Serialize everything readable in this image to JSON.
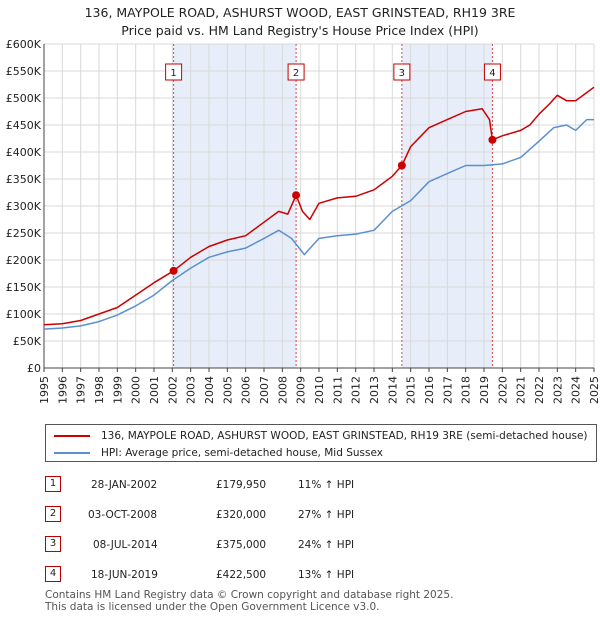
{
  "title_line1": "136, MAYPOLE ROAD, ASHURST WOOD, EAST GRINSTEAD, RH19 3RE",
  "title_line2": "Price paid vs. HM Land Registry's House Price Index (HPI)",
  "colors": {
    "property": "#cc0000",
    "hpi": "#5b8fd0",
    "shade": "#e8eef9",
    "marker_border": "#c00000"
  },
  "legend": {
    "property_label": "136, MAYPOLE ROAD, ASHURST WOOD, EAST GRINSTEAD, RH19 3RE (semi-detached house)",
    "hpi_label": "HPI: Average price, semi-detached house, Mid Sussex"
  },
  "sales": [
    {
      "num": "1",
      "date": "28-JAN-2002",
      "price": "£179,950",
      "hpi": "11% ↑ HPI",
      "t": 2002.07,
      "value": 179950
    },
    {
      "num": "2",
      "date": "03-OCT-2008",
      "price": "£320,000",
      "hpi": "27% ↑ HPI",
      "t": 2008.75,
      "value": 320000
    },
    {
      "num": "3",
      "date": "08-JUL-2014",
      "price": "£375,000",
      "hpi": "24% ↑ HPI",
      "t": 2014.52,
      "value": 375000
    },
    {
      "num": "4",
      "date": "18-JUN-2019",
      "price": "£422,500",
      "hpi": "13% ↑ HPI",
      "t": 2019.46,
      "value": 422500
    }
  ],
  "footer": {
    "line1": "Contains HM Land Registry data © Crown copyright and database right 2025.",
    "line2": "This data is licensed under the Open Government Licence v3.0."
  },
  "chart_data": {
    "type": "line",
    "xlim": [
      1995,
      2025
    ],
    "ylim": [
      0,
      600000
    ],
    "x_ticks": [
      "1995",
      "1996",
      "1997",
      "1998",
      "1999",
      "2000",
      "2001",
      "2002",
      "2003",
      "2004",
      "2005",
      "2006",
      "2007",
      "2008",
      "2009",
      "2010",
      "2011",
      "2012",
      "2013",
      "2014",
      "2015",
      "2016",
      "2017",
      "2018",
      "2019",
      "2020",
      "2021",
      "2022",
      "2023",
      "2024",
      "2025"
    ],
    "y_ticks": [
      {
        "v": 0,
        "label": "£0"
      },
      {
        "v": 50000,
        "label": "£50K"
      },
      {
        "v": 100000,
        "label": "£100K"
      },
      {
        "v": 150000,
        "label": "£150K"
      },
      {
        "v": 200000,
        "label": "£200K"
      },
      {
        "v": 250000,
        "label": "£250K"
      },
      {
        "v": 300000,
        "label": "£300K"
      },
      {
        "v": 350000,
        "label": "£350K"
      },
      {
        "v": 400000,
        "label": "£400K"
      },
      {
        "v": 450000,
        "label": "£450K"
      },
      {
        "v": 500000,
        "label": "£500K"
      },
      {
        "v": 550000,
        "label": "£550K"
      },
      {
        "v": 600000,
        "label": "£600K"
      }
    ],
    "shaded_ranges": [
      [
        2002.07,
        2008.75
      ],
      [
        2014.52,
        2019.46
      ]
    ],
    "series": [
      {
        "name": "136, MAYPOLE ROAD, ASHURST WOOD, EAST GRINSTEAD, RH19 3RE (semi-detached house)",
        "x": [
          1995,
          1996,
          1997,
          1998,
          1999,
          2000,
          2001,
          2002.07,
          2003,
          2004,
          2005,
          2006,
          2007,
          2007.8,
          2008.3,
          2008.75,
          2009.1,
          2009.5,
          2010,
          2011,
          2012,
          2013,
          2014,
          2014.52,
          2015,
          2016,
          2017,
          2018,
          2018.9,
          2019.3,
          2019.46,
          2020,
          2021,
          2021.5,
          2022,
          2022.6,
          2023,
          2023.5,
          2024,
          2024.6,
          2025
        ],
        "values": [
          80000,
          82000,
          88000,
          100000,
          112000,
          135000,
          158000,
          179950,
          205000,
          225000,
          237000,
          245000,
          270000,
          290000,
          285000,
          320000,
          290000,
          275000,
          305000,
          315000,
          318000,
          330000,
          355000,
          375000,
          410000,
          445000,
          460000,
          475000,
          480000,
          460000,
          422500,
          430000,
          440000,
          450000,
          470000,
          490000,
          505000,
          495000,
          495000,
          510000,
          520000
        ]
      },
      {
        "name": "HPI: Average price, semi-detached house, Mid Sussex",
        "x": [
          1995,
          1996,
          1997,
          1998,
          1999,
          2000,
          2001,
          2002,
          2003,
          2004,
          2005,
          2006,
          2007,
          2007.8,
          2008.5,
          2009.2,
          2010,
          2011,
          2012,
          2013,
          2014,
          2015,
          2016,
          2017,
          2018,
          2019,
          2020,
          2021,
          2022,
          2022.8,
          2023.5,
          2024,
          2024.6,
          2025
        ],
        "values": [
          72000,
          74000,
          78000,
          86000,
          98000,
          115000,
          135000,
          162000,
          185000,
          205000,
          215000,
          222000,
          240000,
          255000,
          240000,
          210000,
          240000,
          245000,
          248000,
          255000,
          290000,
          310000,
          345000,
          360000,
          375000,
          375000,
          378000,
          390000,
          420000,
          445000,
          450000,
          440000,
          460000,
          460000
        ]
      }
    ]
  }
}
